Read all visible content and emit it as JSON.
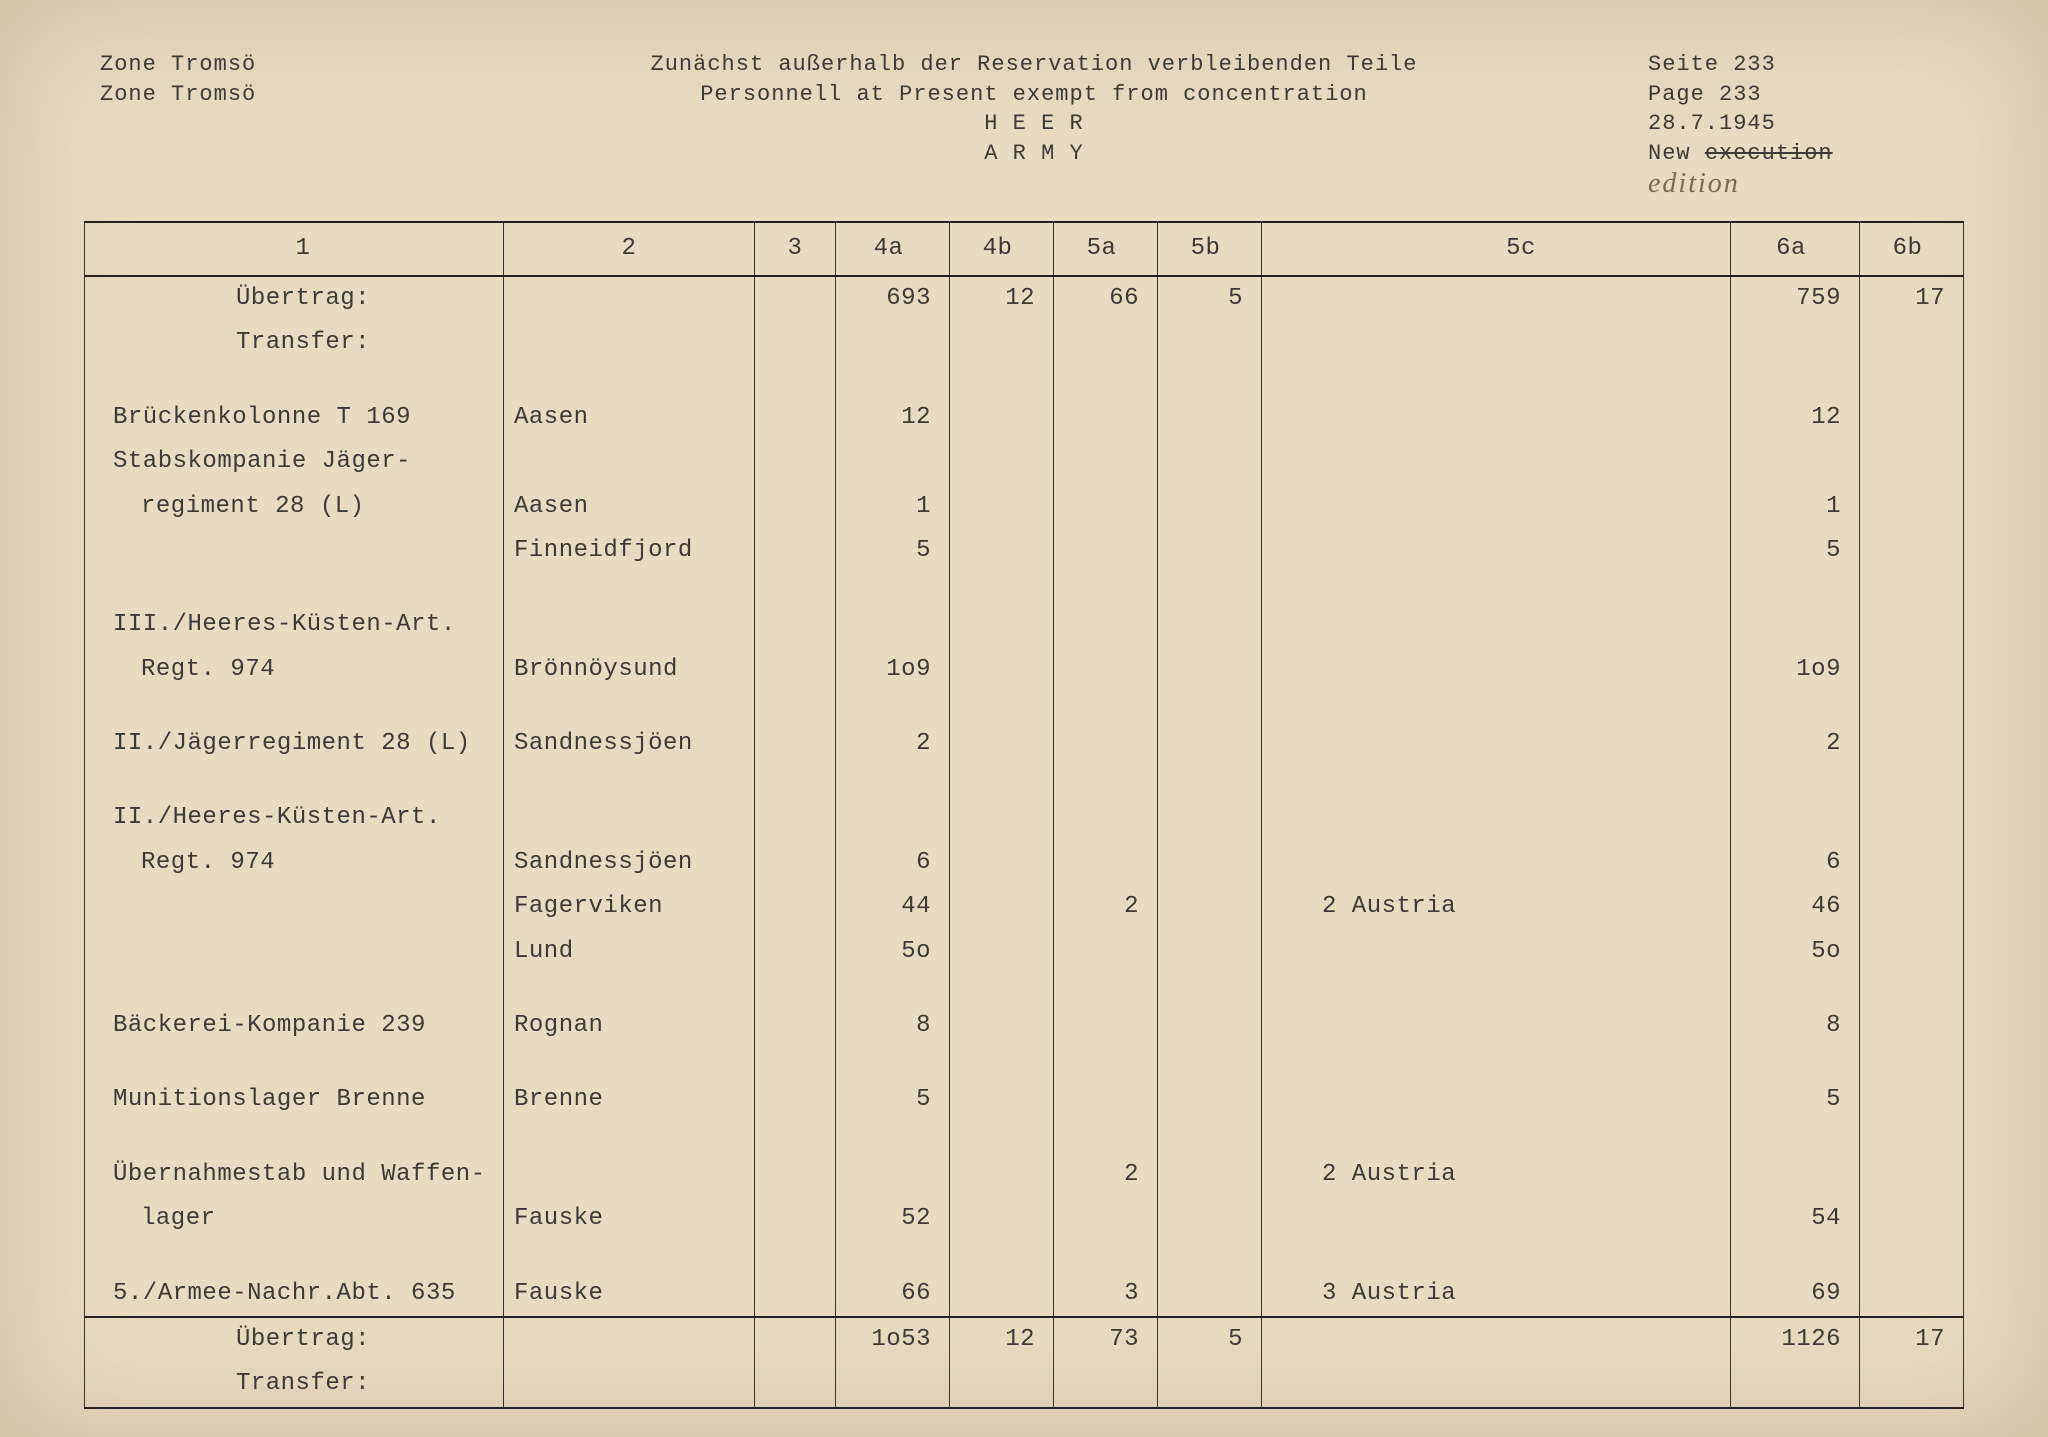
{
  "header": {
    "zone_de": "Zone Tromsö",
    "zone_en": "Zone Tromsö",
    "title_de": "Zunächst außerhalb der Reservation verbleibenden Teile",
    "title_en": "Personnell at Present exempt from concentration",
    "sub_de": "H E E R",
    "sub_en": "A R M Y",
    "page_de": "Seite 233",
    "page_en": "Page  233",
    "date": "28.7.1945",
    "exec": "New execution",
    "hand": "edition"
  },
  "columns": {
    "c1": "1",
    "c2": "2",
    "c3": "3",
    "c4a": "4a",
    "c4b": "4b",
    "c5a": "5a",
    "c5b": "5b",
    "c5c": "5c",
    "c6a": "6a",
    "c6b": "6b"
  },
  "transfer_top": {
    "label_de": "Übertrag:",
    "label_en": "Transfer:",
    "c4a": "693",
    "c4b": "12",
    "c5a": "66",
    "c5b": "5",
    "c6a": "759",
    "c6b": "17"
  },
  "rows": [
    {
      "c1": "Brückenkolonne T 169",
      "c2": "Aasen",
      "c4a": "12",
      "c6a": "12"
    },
    {
      "c1": "Stabskompanie Jäger-",
      "c2": "",
      "c4a": "",
      "c6a": ""
    },
    {
      "c1_indent": "regiment 28 (L)",
      "c2": "Aasen",
      "c4a": "1",
      "c6a": "1"
    },
    {
      "c1": "",
      "c2": "Finneidfjord",
      "c4a": "5",
      "c6a": "5"
    },
    {
      "spacer": true
    },
    {
      "c1": "III./Heeres-Küsten-Art.",
      "c2": "",
      "c4a": "",
      "c6a": ""
    },
    {
      "c1_indent": "Regt. 974",
      "c2": "Brönnöysund",
      "c4a": "1o9",
      "c6a": "1o9"
    },
    {
      "spacer": true
    },
    {
      "c1": "II./Jägerregiment 28 (L)",
      "c2": "Sandnessjöen",
      "c4a": "2",
      "c6a": "2"
    },
    {
      "spacer": true
    },
    {
      "c1": "II./Heeres-Küsten-Art.",
      "c2": "",
      "c4a": "",
      "c6a": ""
    },
    {
      "c1_indent": "Regt. 974",
      "c2": "Sandnessjöen",
      "c4a": "6",
      "c6a": "6"
    },
    {
      "c1": "",
      "c2": "Fagerviken",
      "c4a": "44",
      "c5a": "2",
      "c5c": "2 Austria",
      "c6a": "46"
    },
    {
      "c1": "",
      "c2": "Lund",
      "c4a": "5o",
      "c6a": "5o"
    },
    {
      "spacer": true
    },
    {
      "c1": "Bäckerei-Kompanie 239",
      "c2": "Rognan",
      "c4a": "8",
      "c6a": "8"
    },
    {
      "spacer": true
    },
    {
      "c1": "Munitionslager Brenne",
      "c2": "Brenne",
      "c4a": "5",
      "c6a": "5"
    },
    {
      "spacer": true
    },
    {
      "c1": "Übernahmestab und Waffen-",
      "c2": "",
      "c5a": "2",
      "c5c": "2 Austria",
      "c6a": ""
    },
    {
      "c1_indent": "lager",
      "c2": "Fauske",
      "c4a": "52",
      "c6a": "54"
    },
    {
      "spacer": true
    },
    {
      "c1": "5./Armee-Nachr.Abt. 635",
      "c2": "Fauske",
      "c4a": "66",
      "c5a": "3",
      "c5c": "3 Austria",
      "c6a": "69"
    }
  ],
  "transfer_bottom": {
    "label_de": "Übertrag:",
    "label_en": "Transfer:",
    "c4a": "1o53",
    "c4b": "12",
    "c5a": "73",
    "c5b": "5",
    "c6a": "1126",
    "c6b": "17"
  },
  "colors": {
    "paper": "#e8dcc0",
    "ink": "#3a3a3a",
    "border": "#333333"
  }
}
